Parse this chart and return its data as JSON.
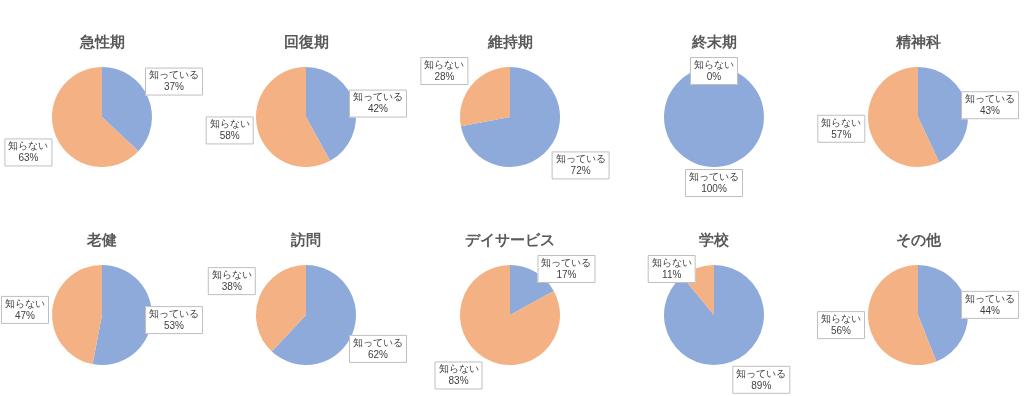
{
  "chart_data": [
    {
      "type": "pie",
      "title": "急性期",
      "categories": [
        "知っている",
        "知らない"
      ],
      "values": [
        37,
        63
      ],
      "value_labels": [
        "37%",
        "63%"
      ],
      "colors": [
        "#8eaadb",
        "#f4b183"
      ]
    },
    {
      "type": "pie",
      "title": "回復期",
      "categories": [
        "知っている",
        "知らない"
      ],
      "values": [
        42,
        58
      ],
      "value_labels": [
        "42%",
        "58%"
      ],
      "colors": [
        "#8eaadb",
        "#f4b183"
      ]
    },
    {
      "type": "pie",
      "title": "維持期",
      "categories": [
        "知っている",
        "知らない"
      ],
      "values": [
        72,
        28
      ],
      "value_labels": [
        "72%",
        "28%"
      ],
      "colors": [
        "#8eaadb",
        "#f4b183"
      ]
    },
    {
      "type": "pie",
      "title": "終末期",
      "categories": [
        "知っている",
        "知らない"
      ],
      "values": [
        100,
        0
      ],
      "value_labels": [
        "100%",
        "0%"
      ],
      "colors": [
        "#8eaadb",
        "#f4b183"
      ]
    },
    {
      "type": "pie",
      "title": "精神科",
      "categories": [
        "知っている",
        "知らない"
      ],
      "values": [
        43,
        57
      ],
      "value_labels": [
        "43%",
        "57%"
      ],
      "colors": [
        "#8eaadb",
        "#f4b183"
      ]
    },
    {
      "type": "pie",
      "title": "老健",
      "categories": [
        "知っている",
        "知らない"
      ],
      "values": [
        53,
        47
      ],
      "value_labels": [
        "53%",
        "47%"
      ],
      "colors": [
        "#8eaadb",
        "#f4b183"
      ]
    },
    {
      "type": "pie",
      "title": "訪問",
      "categories": [
        "知っている",
        "知らない"
      ],
      "values": [
        62,
        38
      ],
      "value_labels": [
        "62%",
        "38%"
      ],
      "colors": [
        "#8eaadb",
        "#f4b183"
      ]
    },
    {
      "type": "pie",
      "title": "デイサービス",
      "categories": [
        "知っている",
        "知らない"
      ],
      "values": [
        17,
        83
      ],
      "value_labels": [
        "17%",
        "83%"
      ],
      "colors": [
        "#8eaadb",
        "#f4b183"
      ]
    },
    {
      "type": "pie",
      "title": "学校",
      "categories": [
        "知っている",
        "知らない"
      ],
      "values": [
        89,
        11
      ],
      "value_labels": [
        "89%",
        "11%"
      ],
      "colors": [
        "#8eaadb",
        "#f4b183"
      ]
    },
    {
      "type": "pie",
      "title": "その他",
      "categories": [
        "知っている",
        "知らない"
      ],
      "values": [
        44,
        56
      ],
      "value_labels": [
        "44%",
        "56%"
      ],
      "colors": [
        "#8eaadb",
        "#f4b183"
      ]
    }
  ]
}
